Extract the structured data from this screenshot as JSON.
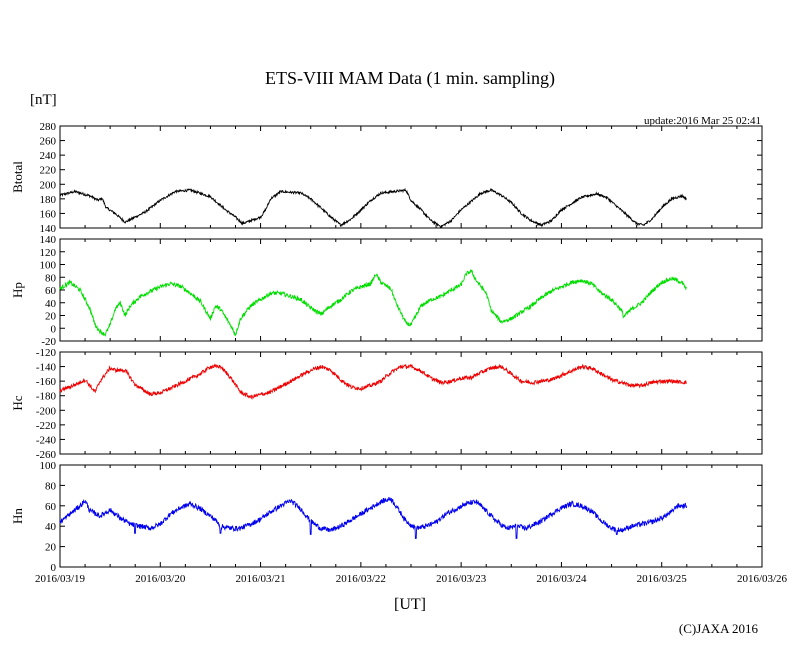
{
  "chart_data": {
    "type": "line",
    "title": "ETS-VIII MAM Data (1 min. sampling)",
    "unit_label": "[nT]",
    "update_label": "update:2016 Mar 25 02:41",
    "xlabel": "[UT]",
    "copyright": "(C)JAXA 2016",
    "x_ticks": [
      "2016/03/19",
      "2016/03/20",
      "2016/03/21",
      "2016/03/22",
      "2016/03/23",
      "2016/03/24",
      "2016/03/25",
      "2016/03/26"
    ],
    "x_range_days": [
      0,
      7
    ],
    "panels": [
      {
        "name": "Btotal",
        "color": "#000000",
        "ylim": [
          140,
          280
        ],
        "yticks": [
          140,
          160,
          180,
          200,
          220,
          240,
          260,
          280
        ],
        "noise": 1.6,
        "points": [
          [
            0,
            185
          ],
          [
            0.15,
            190
          ],
          [
            0.3,
            184
          ],
          [
            0.38,
            178
          ],
          [
            0.42,
            181
          ],
          [
            0.46,
            168
          ],
          [
            0.55,
            160
          ],
          [
            0.65,
            148
          ],
          [
            0.75,
            155
          ],
          [
            0.85,
            162
          ],
          [
            1.0,
            178
          ],
          [
            1.15,
            190
          ],
          [
            1.3,
            192
          ],
          [
            1.5,
            183
          ],
          [
            1.65,
            165
          ],
          [
            1.75,
            155
          ],
          [
            1.82,
            146
          ],
          [
            1.9,
            150
          ],
          [
            2.0,
            155
          ],
          [
            2.05,
            165
          ],
          [
            2.1,
            180
          ],
          [
            2.2,
            190
          ],
          [
            2.4,
            188
          ],
          [
            2.5,
            180
          ],
          [
            2.6,
            168
          ],
          [
            2.7,
            155
          ],
          [
            2.8,
            144
          ],
          [
            2.9,
            152
          ],
          [
            3.0,
            165
          ],
          [
            3.1,
            178
          ],
          [
            3.2,
            188
          ],
          [
            3.45,
            192
          ],
          [
            3.5,
            178
          ],
          [
            3.6,
            165
          ],
          [
            3.7,
            150
          ],
          [
            3.8,
            142
          ],
          [
            3.9,
            150
          ],
          [
            4.0,
            165
          ],
          [
            4.2,
            188
          ],
          [
            4.3,
            192
          ],
          [
            4.4,
            185
          ],
          [
            4.5,
            175
          ],
          [
            4.6,
            160
          ],
          [
            4.7,
            150
          ],
          [
            4.8,
            144
          ],
          [
            4.9,
            150
          ],
          [
            5.0,
            165
          ],
          [
            5.2,
            182
          ],
          [
            5.35,
            187
          ],
          [
            5.45,
            182
          ],
          [
            5.55,
            170
          ],
          [
            5.65,
            158
          ],
          [
            5.75,
            146
          ],
          [
            5.82,
            144
          ],
          [
            5.9,
            152
          ],
          [
            6.0,
            168
          ],
          [
            6.1,
            180
          ],
          [
            6.2,
            184
          ],
          [
            6.25,
            180
          ]
        ]
      },
      {
        "name": "Hp",
        "color": "#00dd00",
        "ylim": [
          -20,
          140
        ],
        "yticks": [
          -20,
          0,
          20,
          40,
          60,
          80,
          100,
          120,
          140
        ],
        "noise": 3.2,
        "points": [
          [
            0,
            62
          ],
          [
            0.1,
            72
          ],
          [
            0.2,
            60
          ],
          [
            0.3,
            30
          ],
          [
            0.35,
            5
          ],
          [
            0.4,
            -5
          ],
          [
            0.45,
            -10
          ],
          [
            0.5,
            5
          ],
          [
            0.55,
            30
          ],
          [
            0.6,
            40
          ],
          [
            0.65,
            20
          ],
          [
            0.7,
            35
          ],
          [
            0.8,
            50
          ],
          [
            0.9,
            58
          ],
          [
            1.0,
            65
          ],
          [
            1.1,
            70
          ],
          [
            1.2,
            66
          ],
          [
            1.3,
            55
          ],
          [
            1.4,
            42
          ],
          [
            1.5,
            15
          ],
          [
            1.55,
            35
          ],
          [
            1.6,
            30
          ],
          [
            1.7,
            5
          ],
          [
            1.75,
            -10
          ],
          [
            1.8,
            15
          ],
          [
            1.9,
            35
          ],
          [
            2.0,
            45
          ],
          [
            2.1,
            55
          ],
          [
            2.2,
            55
          ],
          [
            2.3,
            50
          ],
          [
            2.4,
            45
          ],
          [
            2.5,
            32
          ],
          [
            2.6,
            22
          ],
          [
            2.7,
            35
          ],
          [
            2.8,
            45
          ],
          [
            2.9,
            58
          ],
          [
            3.0,
            65
          ],
          [
            3.1,
            70
          ],
          [
            3.15,
            85
          ],
          [
            3.2,
            72
          ],
          [
            3.3,
            62
          ],
          [
            3.35,
            40
          ],
          [
            3.45,
            8
          ],
          [
            3.5,
            5
          ],
          [
            3.55,
            20
          ],
          [
            3.6,
            35
          ],
          [
            3.7,
            45
          ],
          [
            3.8,
            50
          ],
          [
            3.9,
            60
          ],
          [
            4.0,
            68
          ],
          [
            4.05,
            85
          ],
          [
            4.1,
            90
          ],
          [
            4.15,
            75
          ],
          [
            4.25,
            55
          ],
          [
            4.3,
            28
          ],
          [
            4.4,
            10
          ],
          [
            4.5,
            15
          ],
          [
            4.6,
            25
          ],
          [
            4.7,
            35
          ],
          [
            4.8,
            48
          ],
          [
            4.9,
            58
          ],
          [
            5.0,
            65
          ],
          [
            5.1,
            72
          ],
          [
            5.2,
            75
          ],
          [
            5.3,
            70
          ],
          [
            5.4,
            55
          ],
          [
            5.5,
            45
          ],
          [
            5.6,
            28
          ],
          [
            5.62,
            18
          ],
          [
            5.7,
            30
          ],
          [
            5.8,
            40
          ],
          [
            5.9,
            58
          ],
          [
            6.0,
            72
          ],
          [
            6.1,
            78
          ],
          [
            6.2,
            72
          ],
          [
            6.25,
            60
          ]
        ]
      },
      {
        "name": "Hc",
        "color": "#ee0000",
        "ylim": [
          -260,
          -120
        ],
        "yticks": [
          -260,
          -240,
          -220,
          -200,
          -180,
          -160,
          -140,
          -120
        ],
        "noise": 2.6,
        "points": [
          [
            0,
            -173
          ],
          [
            0.15,
            -165
          ],
          [
            0.25,
            -158
          ],
          [
            0.35,
            -175
          ],
          [
            0.4,
            -160
          ],
          [
            0.5,
            -142
          ],
          [
            0.55,
            -145
          ],
          [
            0.65,
            -145
          ],
          [
            0.75,
            -165
          ],
          [
            0.9,
            -178
          ],
          [
            1.0,
            -176
          ],
          [
            1.1,
            -170
          ],
          [
            1.25,
            -160
          ],
          [
            1.4,
            -150
          ],
          [
            1.5,
            -140
          ],
          [
            1.6,
            -140
          ],
          [
            1.7,
            -155
          ],
          [
            1.8,
            -175
          ],
          [
            1.9,
            -182
          ],
          [
            2.1,
            -175
          ],
          [
            2.3,
            -160
          ],
          [
            2.5,
            -145
          ],
          [
            2.6,
            -140
          ],
          [
            2.7,
            -145
          ],
          [
            2.8,
            -158
          ],
          [
            2.9,
            -168
          ],
          [
            3.0,
            -170
          ],
          [
            3.1,
            -166
          ],
          [
            3.2,
            -160
          ],
          [
            3.3,
            -148
          ],
          [
            3.4,
            -140
          ],
          [
            3.5,
            -140
          ],
          [
            3.6,
            -146
          ],
          [
            3.7,
            -156
          ],
          [
            3.8,
            -162
          ],
          [
            3.9,
            -160
          ],
          [
            4.0,
            -156
          ],
          [
            4.1,
            -155
          ],
          [
            4.2,
            -148
          ],
          [
            4.3,
            -142
          ],
          [
            4.4,
            -140
          ],
          [
            4.5,
            -150
          ],
          [
            4.6,
            -160
          ],
          [
            4.7,
            -162
          ],
          [
            4.8,
            -160
          ],
          [
            4.9,
            -158
          ],
          [
            5.0,
            -152
          ],
          [
            5.1,
            -146
          ],
          [
            5.2,
            -140
          ],
          [
            5.3,
            -142
          ],
          [
            5.4,
            -150
          ],
          [
            5.5,
            -158
          ],
          [
            5.6,
            -162
          ],
          [
            5.7,
            -166
          ],
          [
            5.8,
            -166
          ],
          [
            5.9,
            -162
          ],
          [
            6.0,
            -160
          ],
          [
            6.1,
            -160
          ],
          [
            6.25,
            -162
          ]
        ]
      },
      {
        "name": "Hn",
        "color": "#0000ee",
        "ylim": [
          0,
          100
        ],
        "yticks": [
          0,
          20,
          40,
          60,
          80,
          100
        ],
        "noise": 2.4,
        "points": [
          [
            0,
            44
          ],
          [
            0.1,
            52
          ],
          [
            0.2,
            60
          ],
          [
            0.25,
            65
          ],
          [
            0.3,
            55
          ],
          [
            0.4,
            50
          ],
          [
            0.5,
            56
          ],
          [
            0.6,
            48
          ],
          [
            0.7,
            42
          ],
          [
            0.8,
            40
          ],
          [
            0.9,
            38
          ],
          [
            1.0,
            42
          ],
          [
            1.1,
            52
          ],
          [
            1.2,
            58
          ],
          [
            1.3,
            62
          ],
          [
            1.4,
            57
          ],
          [
            1.5,
            50
          ],
          [
            1.55,
            46
          ],
          [
            1.6,
            40
          ],
          [
            1.7,
            38
          ],
          [
            1.8,
            38
          ],
          [
            1.9,
            42
          ],
          [
            2.0,
            47
          ],
          [
            2.1,
            54
          ],
          [
            2.2,
            60
          ],
          [
            2.3,
            65
          ],
          [
            2.4,
            57
          ],
          [
            2.5,
            45
          ],
          [
            2.6,
            38
          ],
          [
            2.7,
            36
          ],
          [
            2.8,
            40
          ],
          [
            2.9,
            46
          ],
          [
            3.0,
            52
          ],
          [
            3.1,
            58
          ],
          [
            3.2,
            64
          ],
          [
            3.3,
            67
          ],
          [
            3.35,
            60
          ],
          [
            3.45,
            45
          ],
          [
            3.55,
            38
          ],
          [
            3.65,
            40
          ],
          [
            3.75,
            44
          ],
          [
            3.85,
            52
          ],
          [
            3.95,
            57
          ],
          [
            4.05,
            62
          ],
          [
            4.15,
            64
          ],
          [
            4.25,
            55
          ],
          [
            4.35,
            45
          ],
          [
            4.45,
            38
          ],
          [
            4.55,
            40
          ],
          [
            4.65,
            38
          ],
          [
            4.8,
            45
          ],
          [
            4.9,
            52
          ],
          [
            5.0,
            58
          ],
          [
            5.1,
            62
          ],
          [
            5.2,
            60
          ],
          [
            5.3,
            55
          ],
          [
            5.4,
            45
          ],
          [
            5.5,
            38
          ],
          [
            5.6,
            36
          ],
          [
            5.7,
            40
          ],
          [
            5.8,
            42
          ],
          [
            5.9,
            44
          ],
          [
            6.0,
            48
          ],
          [
            6.1,
            54
          ],
          [
            6.15,
            60
          ],
          [
            6.25,
            60
          ]
        ],
        "dips": [
          [
            0.75,
            33
          ],
          [
            1.6,
            33
          ],
          [
            2.5,
            32
          ],
          [
            3.55,
            28
          ],
          [
            4.55,
            28
          ],
          [
            5.55,
            32
          ]
        ]
      }
    ]
  }
}
